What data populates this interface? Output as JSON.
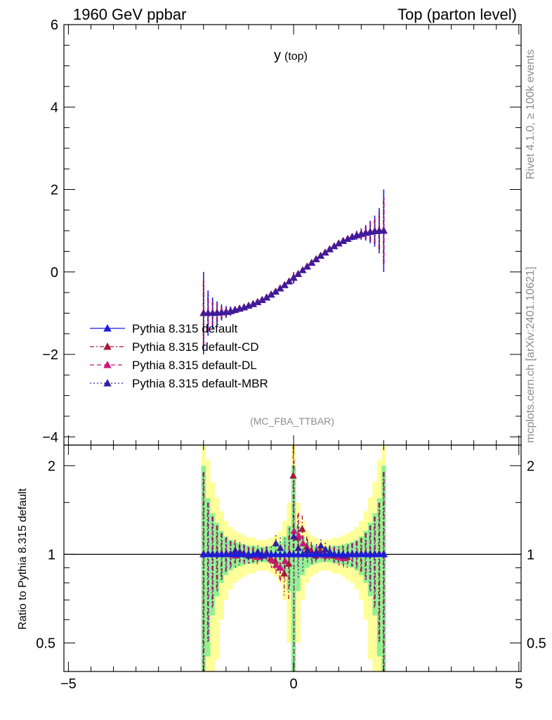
{
  "header": {
    "left": "1960 GeV ppbar",
    "right": "Top (parton level)",
    "side_top": "Rivet 4.1.0, ≥ 100k events",
    "side_bottom": "mcplots.cern.ch [arXiv:2401.10621]"
  },
  "chart_data": {
    "type": "line",
    "title": "y",
    "title_sub": "(top)",
    "analysis_tag": "(MC_FBA_TTBAR)",
    "xlabel": "",
    "ylabel_main": "",
    "ylabel_ratio": "Ratio to Pythia 8.315 default",
    "xlim": [
      -5.1,
      5.05
    ],
    "ylim_main": [
      -4.2,
      6
    ],
    "ylim_ratio": [
      0.4,
      2.35
    ],
    "x_ticks": [
      "−5",
      "0",
      "5"
    ],
    "y_ticks_main": [
      "−4",
      "−2",
      "0",
      "2",
      "4",
      "6"
    ],
    "y_ticks_ratio": [
      "0.5",
      "1",
      "2"
    ],
    "colors": {
      "default": "#1c1cd9",
      "cd": "#a8173b",
      "dl": "#c8187a",
      "mbr": "#3c1c9c",
      "band_inner": "#90f090",
      "band_outer": "#ffff99"
    },
    "series": [
      {
        "name": "Pythia 8.315 default",
        "style": "solid",
        "color_key": "default"
      },
      {
        "name": "Pythia 8.315 default-CD",
        "style": "dashdot",
        "color_key": "cd"
      },
      {
        "name": "Pythia 8.315 default-DL",
        "style": "dashed",
        "color_key": "dl"
      },
      {
        "name": "Pythia 8.315 default-MBR",
        "style": "dotted",
        "color_key": "mbr"
      }
    ],
    "x": [
      -2.0,
      -1.9,
      -1.8,
      -1.7,
      -1.6,
      -1.5,
      -1.4,
      -1.3,
      -1.2,
      -1.1,
      -1.0,
      -0.9,
      -0.8,
      -0.7,
      -0.6,
      -0.5,
      -0.4,
      -0.3,
      -0.2,
      -0.1,
      0.0,
      0.1,
      0.2,
      0.3,
      0.4,
      0.5,
      0.6,
      0.7,
      0.8,
      0.9,
      1.0,
      1.1,
      1.2,
      1.3,
      1.4,
      1.5,
      1.6,
      1.7,
      1.8,
      1.9,
      2.0
    ],
    "values_main": [
      -1.0,
      -1.0,
      -1.0,
      -0.99,
      -0.98,
      -0.97,
      -0.95,
      -0.92,
      -0.89,
      -0.86,
      -0.82,
      -0.78,
      -0.73,
      -0.68,
      -0.62,
      -0.55,
      -0.48,
      -0.4,
      -0.32,
      -0.23,
      -0.14,
      -0.05,
      0.04,
      0.13,
      0.22,
      0.31,
      0.39,
      0.47,
      0.55,
      0.62,
      0.69,
      0.75,
      0.8,
      0.85,
      0.89,
      0.92,
      0.95,
      0.97,
      0.99,
      1.0,
      1.0
    ],
    "ratio_default": [
      1.0,
      1.0,
      1.0,
      1.0,
      1.0,
      1.0,
      1.0,
      1.0,
      1.0,
      1.0,
      1.0,
      1.0,
      1.0,
      1.0,
      1.0,
      1.0,
      1.0,
      1.0,
      1.0,
      1.0,
      1.0,
      1.0,
      1.0,
      1.0,
      1.0,
      1.0,
      1.0,
      1.0,
      1.0,
      1.0,
      1.0,
      1.0,
      1.0,
      1.0,
      1.0,
      1.0,
      1.0,
      1.0,
      1.0,
      1.0,
      1.0
    ],
    "ratio_cd": [
      1.0,
      1.0,
      1.0,
      1.0,
      1.0,
      1.0,
      1.0,
      1.02,
      1.0,
      1.01,
      1.0,
      0.99,
      0.98,
      1.0,
      1.01,
      0.97,
      0.95,
      0.9,
      0.86,
      0.93,
      1.85,
      1.14,
      1.22,
      1.06,
      1.03,
      0.99,
      1.03,
      1.0,
      1.01,
      0.99,
      0.98,
      1.0,
      0.98,
      1.0,
      1.0,
      1.0,
      1.0,
      1.0,
      1.0,
      1.0,
      1.0
    ],
    "ratio_dl": [
      1.0,
      1.0,
      1.0,
      1.0,
      1.0,
      1.01,
      1.0,
      0.99,
      1.0,
      1.0,
      0.99,
      1.0,
      0.98,
      0.99,
      1.0,
      0.96,
      0.92,
      0.9,
      0.95,
      1.01,
      1.2,
      1.16,
      1.09,
      1.04,
      1.0,
      1.02,
      1.0,
      0.99,
      1.01,
      1.0,
      0.98,
      0.97,
      1.0,
      1.0,
      1.0,
      1.0,
      1.0,
      1.0,
      1.0,
      1.0,
      1.0
    ],
    "ratio_mbr": [
      1.0,
      1.0,
      1.0,
      1.0,
      1.0,
      1.0,
      1.0,
      1.03,
      1.02,
      1.0,
      0.99,
      1.0,
      1.02,
      0.99,
      1.01,
      1.0,
      1.09,
      1.05,
      1.0,
      1.0,
      1.15,
      1.05,
      1.0,
      1.03,
      1.0,
      1.02,
      1.07,
      1.04,
      1.02,
      1.0,
      1.0,
      0.99,
      1.0,
      1.0,
      1.0,
      1.0,
      1.0,
      1.0,
      1.0,
      1.0,
      1.0
    ],
    "ratio_unc": [
      1.0,
      0.55,
      0.38,
      0.28,
      0.2,
      0.15,
      0.12,
      0.1,
      0.09,
      0.08,
      0.07,
      0.07,
      0.06,
      0.06,
      0.06,
      0.07,
      0.08,
      0.1,
      0.15,
      0.25,
      1.0,
      0.25,
      0.15,
      0.1,
      0.08,
      0.07,
      0.06,
      0.06,
      0.06,
      0.07,
      0.07,
      0.08,
      0.09,
      0.1,
      0.12,
      0.15,
      0.2,
      0.28,
      0.38,
      0.55,
      1.0
    ]
  }
}
